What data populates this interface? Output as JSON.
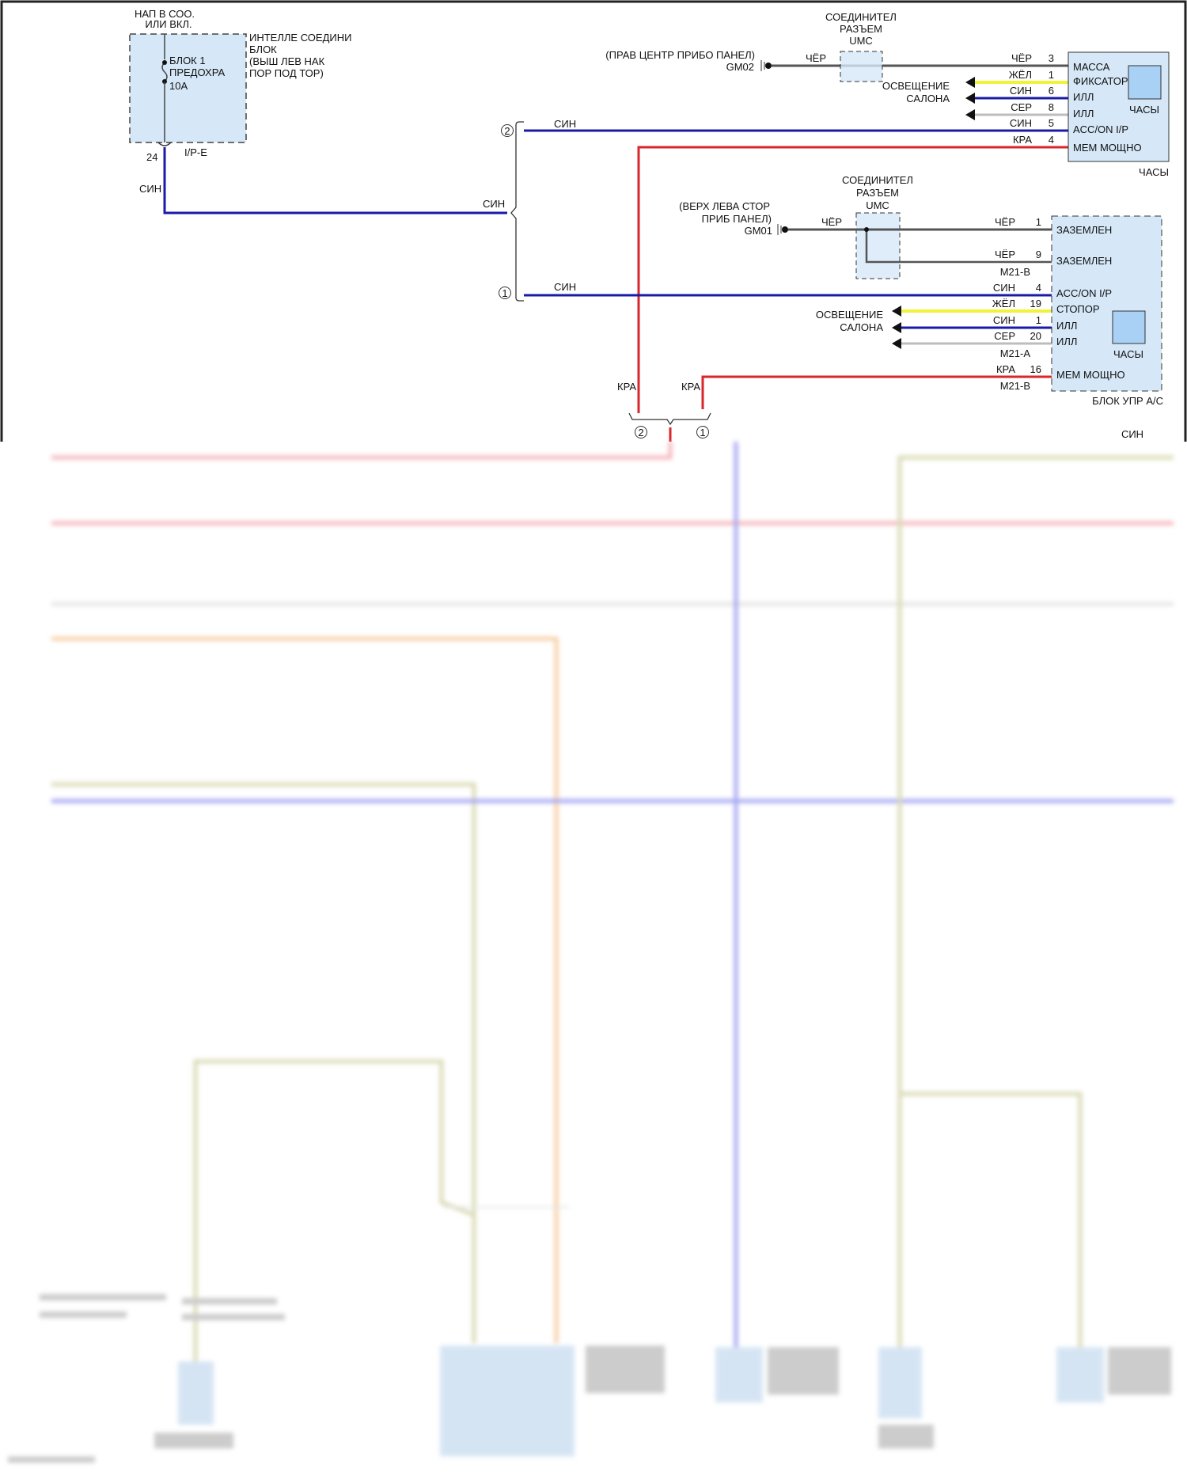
{
  "colors": {
    "blue": "#1a1aa8",
    "red": "#d8262b",
    "black": "#555555",
    "yellow": "#f2f23a",
    "gray": "#bdbdbd",
    "box": "#d6e8f8",
    "pink": "#f2a0a8",
    "orange": "#f5c08a",
    "olive": "#cfcfa0",
    "lightblue": "#8c8cf0"
  },
  "fuse_block": {
    "supply": [
      "НАП В СОО.",
      "ИЛИ ВКЛ."
    ],
    "name": [
      "ИНТЕЛЛЕ СОЕДИНИ",
      "БЛОК",
      "(ВЫШ ЛЕВ НАК",
      "ПОР ПОД ТОР)"
    ],
    "fuse": [
      "БЛОК 1",
      "ПРЕДОХРА",
      "10А"
    ],
    "pin": "24",
    "connector": "I/P-E",
    "wire": "СИН"
  },
  "splice": {
    "circle2": "2",
    "circle1": "1",
    "wire_top": "СИН",
    "wire_bottom": "СИН",
    "wire_in": "СИН"
  },
  "clock": {
    "connector_title": [
      "СОЕДИНИТЕЛ",
      "РАЗЪЕМ",
      "UMC"
    ],
    "ground_location": "(ПРАВ ЦЕНТР ПРИБО ПАНЕЛ)",
    "ground": "GM02",
    "ground_wire": "ЧЁР",
    "lighting": [
      "ОСВЕЩЕНИЕ",
      "САЛОНА"
    ],
    "pins": [
      {
        "wire": "ЧЁР",
        "num": "3",
        "label": "МАССА"
      },
      {
        "wire": "ЖЁЛ",
        "num": "1",
        "label": "ФИКСАТОР"
      },
      {
        "wire": "СИН",
        "num": "6",
        "label": "ИЛЛ"
      },
      {
        "wire": "СЕР",
        "num": "8",
        "label": "ИЛЛ"
      },
      {
        "wire": "СИН",
        "num": "5",
        "label": "ACC/ON I/P"
      },
      {
        "wire": "КРА",
        "num": "4",
        "label": "МЕМ МОЩНО"
      }
    ],
    "inner_label": "ЧАСЫ",
    "name": "ЧАСЫ"
  },
  "ac": {
    "connector_title": [
      "СОЕДИНИТЕЛ",
      "РАЗЪЕМ",
      "UMC"
    ],
    "ground_location": [
      "(ВЕРХ ЛЕВА СТОР",
      "ПРИБ ПАНЕЛ)"
    ],
    "ground": "GM01",
    "ground_wire": "ЧЁР",
    "lighting": [
      "ОСВЕЩЕНИЕ",
      "САЛОНА"
    ],
    "pins": [
      {
        "wire": "ЧЁР",
        "num": "1",
        "label": "ЗАЗЕМЛЕН"
      },
      {
        "wire": "ЧЁР",
        "num": "9",
        "label": "ЗАЗЕМЛЕН"
      },
      {
        "wire": "СИН",
        "num": "4",
        "label": "ACC/ON I/P"
      },
      {
        "wire": "ЖЁЛ",
        "num": "19",
        "label": "СТОПОР"
      },
      {
        "wire": "СИН",
        "num": "1",
        "label": "ИЛЛ"
      },
      {
        "wire": "СЕР",
        "num": "20",
        "label": "ИЛЛ"
      },
      {
        "wire": "КРА",
        "num": "16",
        "label": "МЕМ МОЩНО"
      }
    ],
    "conn_b": "M21-B",
    "conn_a": "M21-A",
    "conn_b2": "M21-B",
    "inner_label": "ЧАСЫ",
    "name": "БЛОК УПР А/С"
  },
  "red_branch": {
    "left": "КРА",
    "right": "КРА",
    "circle2": "2",
    "circle1": "1"
  },
  "lower": {
    "wire_label": "СИН"
  }
}
